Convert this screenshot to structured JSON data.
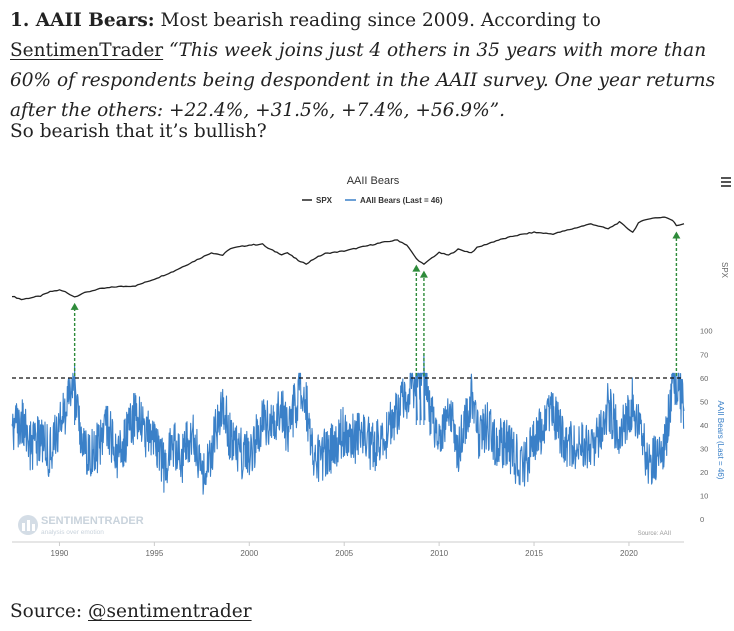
{
  "article": {
    "heading": "1. AAII Bears:",
    "intro": "Most bearish reading since 2009. According to",
    "link_label": "SentimenTrader",
    "quote": "“This week joins just 4 others in 35 years with more than 60% of respondents being despondent in the AAII survey. One year returns after the others: +22.4%, +31.5%, +7.4%, +56.9%”.",
    "question": "So bearish that it’s bullish?",
    "source_label": "Source:",
    "source_link": "@sentimentrader"
  },
  "chart_data": {
    "type": "line",
    "title": "AAII Bears",
    "legend_position": "top-center",
    "x_ticks": [
      "1990",
      "1995",
      "2000",
      "2005",
      "2010",
      "2015",
      "2020"
    ],
    "x_range": [
      1987.5,
      2022.9
    ],
    "y_right_label_upper": "SPX",
    "y_right_label_lower": "AAII Bears (Last = 46)",
    "y_lower_ticks": [
      "0",
      "10",
      "20",
      "30",
      "40",
      "50",
      "60",
      "70",
      "100"
    ],
    "y_lower_range": [
      0,
      100
    ],
    "threshold": 60,
    "watermark": "SENTIMENTRADER",
    "watermark_tagline": "analysis over emotion",
    "source_note": "Source: AAII",
    "series": [
      {
        "name": "SPX",
        "color": "#222222",
        "points": [
          [
            1987.5,
            0.07
          ],
          [
            1988.0,
            0.03
          ],
          [
            1988.5,
            0.05
          ],
          [
            1989.0,
            0.07
          ],
          [
            1989.5,
            0.12
          ],
          [
            1990.0,
            0.14
          ],
          [
            1990.3,
            0.12
          ],
          [
            1990.8,
            0.06
          ],
          [
            1991.2,
            0.1
          ],
          [
            1992.0,
            0.15
          ],
          [
            1993.0,
            0.18
          ],
          [
            1994.0,
            0.19
          ],
          [
            1995.0,
            0.27
          ],
          [
            1996.0,
            0.36
          ],
          [
            1997.0,
            0.47
          ],
          [
            1998.0,
            0.58
          ],
          [
            1998.6,
            0.55
          ],
          [
            1999.0,
            0.63
          ],
          [
            2000.0,
            0.67
          ],
          [
            2000.7,
            0.68
          ],
          [
            2001.0,
            0.63
          ],
          [
            2001.7,
            0.56
          ],
          [
            2002.0,
            0.58
          ],
          [
            2002.7,
            0.47
          ],
          [
            2003.0,
            0.45
          ],
          [
            2003.5,
            0.52
          ],
          [
            2004.0,
            0.57
          ],
          [
            2005.0,
            0.6
          ],
          [
            2006.0,
            0.65
          ],
          [
            2007.0,
            0.7
          ],
          [
            2007.8,
            0.73
          ],
          [
            2008.3,
            0.67
          ],
          [
            2008.8,
            0.51
          ],
          [
            2009.2,
            0.44
          ],
          [
            2009.5,
            0.5
          ],
          [
            2010.0,
            0.58
          ],
          [
            2010.5,
            0.55
          ],
          [
            2011.0,
            0.62
          ],
          [
            2011.7,
            0.58
          ],
          [
            2012.0,
            0.64
          ],
          [
            2013.0,
            0.72
          ],
          [
            2014.0,
            0.78
          ],
          [
            2015.0,
            0.82
          ],
          [
            2016.0,
            0.8
          ],
          [
            2017.0,
            0.86
          ],
          [
            2018.0,
            0.92
          ],
          [
            2018.9,
            0.86
          ],
          [
            2019.5,
            0.94
          ],
          [
            2020.2,
            0.82
          ],
          [
            2020.5,
            0.93
          ],
          [
            2021.0,
            0.98
          ],
          [
            2021.9,
            1.0
          ],
          [
            2022.3,
            0.96
          ],
          [
            2022.5,
            0.9
          ],
          [
            2022.9,
            0.92
          ]
        ]
      },
      {
        "name": "AAII Bears (Last = 46)",
        "color": "#3a80c8",
        "points": [
          [
            1987.5,
            36
          ],
          [
            1988.0,
            42
          ],
          [
            1988.5,
            30
          ],
          [
            1989.0,
            34
          ],
          [
            1989.5,
            28
          ],
          [
            1990.0,
            38
          ],
          [
            1990.5,
            52
          ],
          [
            1990.8,
            65
          ],
          [
            1991.0,
            40
          ],
          [
            1991.5,
            28
          ],
          [
            1992.0,
            30
          ],
          [
            1992.5,
            42
          ],
          [
            1993.0,
            25
          ],
          [
            1993.5,
            34
          ],
          [
            1994.0,
            45
          ],
          [
            1994.5,
            38
          ],
          [
            1995.0,
            30
          ],
          [
            1995.5,
            22
          ],
          [
            1996.0,
            32
          ],
          [
            1996.5,
            26
          ],
          [
            1997.0,
            38
          ],
          [
            1997.5,
            20
          ],
          [
            1998.0,
            30
          ],
          [
            1998.6,
            48
          ],
          [
            1999.0,
            35
          ],
          [
            1999.5,
            28
          ],
          [
            2000.0,
            26
          ],
          [
            2000.5,
            38
          ],
          [
            2001.0,
            42
          ],
          [
            2001.7,
            46
          ],
          [
            2002.0,
            38
          ],
          [
            2002.7,
            55
          ],
          [
            2003.0,
            48
          ],
          [
            2003.5,
            24
          ],
          [
            2004.0,
            28
          ],
          [
            2004.5,
            32
          ],
          [
            2005.0,
            38
          ],
          [
            2005.5,
            34
          ],
          [
            2006.0,
            36
          ],
          [
            2006.5,
            30
          ],
          [
            2007.0,
            34
          ],
          [
            2007.5,
            40
          ],
          [
            2008.0,
            50
          ],
          [
            2008.5,
            56
          ],
          [
            2008.8,
            60
          ],
          [
            2009.0,
            62
          ],
          [
            2009.2,
            70
          ],
          [
            2009.5,
            45
          ],
          [
            2010.0,
            34
          ],
          [
            2010.5,
            48
          ],
          [
            2011.0,
            28
          ],
          [
            2011.7,
            52
          ],
          [
            2012.0,
            36
          ],
          [
            2012.5,
            40
          ],
          [
            2013.0,
            30
          ],
          [
            2013.5,
            34
          ],
          [
            2014.0,
            26
          ],
          [
            2014.5,
            22
          ],
          [
            2015.0,
            32
          ],
          [
            2015.5,
            40
          ],
          [
            2016.0,
            46
          ],
          [
            2016.5,
            36
          ],
          [
            2017.0,
            30
          ],
          [
            2017.5,
            34
          ],
          [
            2018.0,
            28
          ],
          [
            2018.9,
            48
          ],
          [
            2019.5,
            36
          ],
          [
            2020.2,
            50
          ],
          [
            2020.5,
            42
          ],
          [
            2021.0,
            24
          ],
          [
            2021.5,
            26
          ],
          [
            2021.9,
            30
          ],
          [
            2022.3,
            59
          ],
          [
            2022.5,
            59
          ],
          [
            2022.9,
            46
          ]
        ]
      }
    ],
    "markers": [
      1990.8,
      2008.8,
      2009.2,
      2022.5
    ]
  }
}
